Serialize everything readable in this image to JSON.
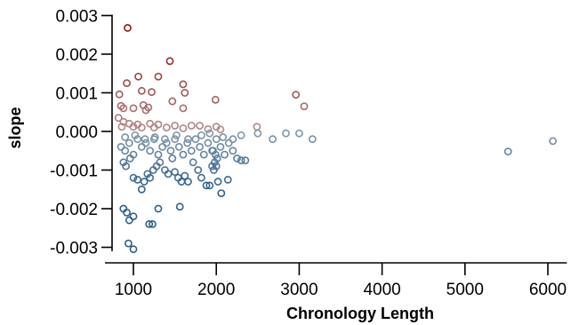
{
  "chart_data": {
    "type": "scatter",
    "title": "",
    "xlabel": "Chronology  Length",
    "ylabel": "slope",
    "xlim": [
      700,
      6100
    ],
    "ylim": [
      -0.0031,
      0.003
    ],
    "xticks": [
      1000,
      2000,
      3000,
      4000,
      5000,
      6000
    ],
    "xtick_labels": [
      "1000",
      "2000",
      "3000",
      "4000",
      "5000",
      "6000"
    ],
    "yticks": [
      -0.003,
      -0.002,
      -0.001,
      0.0,
      0.001,
      0.002,
      0.003
    ],
    "ytick_labels": [
      "-0.003",
      "-0.002",
      "-0.001",
      "0.000",
      "0.001",
      "0.002",
      "0.003"
    ],
    "grid": false,
    "legend": "none",
    "color_scale": {
      "low": "#2f5f88",
      "mid": "#c8c8c8",
      "high": "#8e1a1a"
    },
    "points": [
      [
        930,
        0.00268
      ],
      [
        1440,
        0.00182
      ],
      [
        1060,
        0.00142
      ],
      [
        1300,
        0.00142
      ],
      [
        1600,
        0.00122
      ],
      [
        1620,
        0.001
      ],
      [
        1990,
        0.00082
      ],
      [
        2960,
        0.00095
      ],
      [
        3060,
        0.00065
      ],
      [
        830,
        0.00096
      ],
      [
        920,
        0.00125
      ],
      [
        1100,
        0.00105
      ],
      [
        1220,
        0.00102
      ],
      [
        1470,
        0.00078
      ],
      [
        850,
        0.00066
      ],
      [
        880,
        0.0006
      ],
      [
        1000,
        0.0006
      ],
      [
        1120,
        0.00068
      ],
      [
        1180,
        0.00062
      ],
      [
        1600,
        0.0006
      ],
      [
        1150,
        0.00055
      ],
      [
        820,
        0.00035
      ],
      [
        880,
        0.00025
      ],
      [
        950,
        0.0002
      ],
      [
        1050,
        0.00018
      ],
      [
        1200,
        0.0002
      ],
      [
        1300,
        0.00018
      ],
      [
        1500,
        0.00015
      ],
      [
        1700,
        0.00015
      ],
      [
        1800,
        0.00015
      ],
      [
        2000,
        0.00012
      ],
      [
        2490,
        0.00012
      ],
      [
        860,
        0.00012
      ],
      [
        1000,
        0.00012
      ],
      [
        1100,
        0.0001
      ],
      [
        1250,
        0.0001
      ],
      [
        1400,
        0.0001
      ],
      [
        1600,
        8e-05
      ],
      [
        1900,
        6e-05
      ],
      [
        2050,
        5e-05
      ],
      [
        2300,
        -0.0001
      ],
      [
        2500,
        -5e-05
      ],
      [
        2680,
        -0.0002
      ],
      [
        2840,
        -5e-05
      ],
      [
        3000,
        -5e-05
      ],
      [
        3160,
        -0.0002
      ],
      [
        5520,
        -0.00052
      ],
      [
        6060,
        -0.00025
      ],
      [
        850,
        -0.0004
      ],
      [
        900,
        -0.0005
      ],
      [
        950,
        -0.0003
      ],
      [
        1000,
        -0.0006
      ],
      [
        1050,
        -0.0002
      ],
      [
        1100,
        -0.0004
      ],
      [
        1150,
        -0.0003
      ],
      [
        1200,
        -0.0005
      ],
      [
        1250,
        -0.0002
      ],
      [
        1300,
        -0.0006
      ],
      [
        1350,
        -0.0004
      ],
      [
        1400,
        -0.0003
      ],
      [
        1450,
        -0.0005
      ],
      [
        1500,
        -0.0002
      ],
      [
        1550,
        -0.0004
      ],
      [
        1600,
        -0.0006
      ],
      [
        1650,
        -0.0003
      ],
      [
        1700,
        -0.0005
      ],
      [
        1750,
        -0.0002
      ],
      [
        1800,
        -0.0004
      ],
      [
        1850,
        -0.0006
      ],
      [
        1900,
        -0.0003
      ],
      [
        1950,
        -0.0005
      ],
      [
        2000,
        -0.0002
      ],
      [
        2050,
        -0.0004
      ],
      [
        2100,
        -0.0006
      ],
      [
        2150,
        -0.0003
      ],
      [
        2200,
        -0.0005
      ],
      [
        2250,
        -0.0007
      ],
      [
        2300,
        -0.00075
      ],
      [
        2350,
        -0.00075
      ],
      [
        1960,
        -0.0005
      ],
      [
        1990,
        -0.0006
      ],
      [
        2010,
        -0.0007
      ],
      [
        1980,
        -0.0008
      ],
      [
        2000,
        -0.0009
      ],
      [
        1970,
        -0.001
      ],
      [
        1950,
        -0.0009
      ],
      [
        880,
        -0.0008
      ],
      [
        910,
        -0.0009
      ],
      [
        960,
        -0.0007
      ],
      [
        1000,
        -0.0012
      ],
      [
        1050,
        -0.00125
      ],
      [
        1100,
        -0.0015
      ],
      [
        1130,
        -0.0013
      ],
      [
        1170,
        -0.0011
      ],
      [
        1200,
        -0.0012
      ],
      [
        1240,
        -0.001
      ],
      [
        1280,
        -0.0009
      ],
      [
        1320,
        -0.0008
      ],
      [
        1380,
        -0.001
      ],
      [
        1420,
        -0.0011
      ],
      [
        1470,
        -0.0007
      ],
      [
        1500,
        -0.00105
      ],
      [
        1540,
        -0.0012
      ],
      [
        1580,
        -0.0013
      ],
      [
        1620,
        -0.00115
      ],
      [
        1660,
        -0.0013
      ],
      [
        1720,
        -0.0008
      ],
      [
        1780,
        -0.001
      ],
      [
        1820,
        -0.0012
      ],
      [
        1880,
        -0.0014
      ],
      [
        1920,
        -0.0014
      ],
      [
        2020,
        -0.0013
      ],
      [
        2060,
        -0.0016
      ],
      [
        2140,
        -0.00125
      ],
      [
        1560,
        -0.00195
      ],
      [
        1300,
        -0.002
      ],
      [
        880,
        -0.002
      ],
      [
        920,
        -0.0021
      ],
      [
        950,
        -0.0023
      ],
      [
        1000,
        -0.0022
      ],
      [
        1190,
        -0.0024
      ],
      [
        1230,
        -0.0024
      ],
      [
        940,
        -0.0029
      ],
      [
        1000,
        -0.00305
      ],
      [
        900,
        -0.00015
      ],
      [
        1020,
        -0.0001
      ],
      [
        1140,
        -0.0002
      ],
      [
        1260,
        -0.00015
      ],
      [
        1380,
        -0.0002
      ],
      [
        1520,
        -0.0001
      ],
      [
        1660,
        -0.0002
      ],
      [
        1820,
        -0.0001
      ],
      [
        1920,
        -5e-05
      ],
      [
        2080,
        -0.00015
      ],
      [
        2200,
        -0.0002
      ]
    ]
  }
}
